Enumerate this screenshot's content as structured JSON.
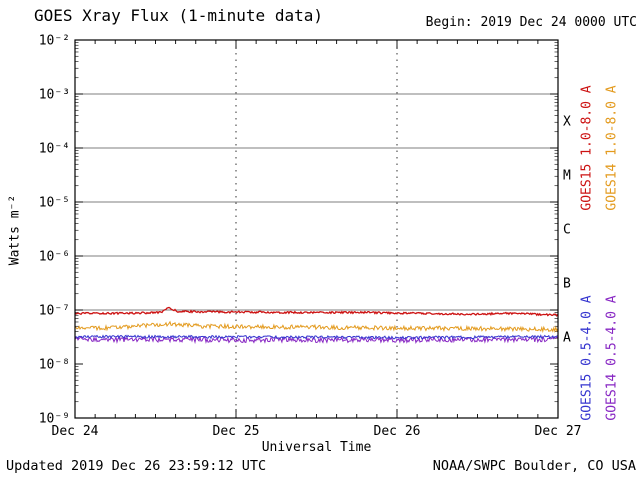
{
  "page": {
    "title": "GOES Xray Flux (1-minute data)",
    "begin_label": "Begin: 2019 Dec 24 0000 UTC",
    "background": "#ffffff",
    "frame_color": "#000000"
  },
  "footer": {
    "updated": "Updated 2019 Dec 26 23:59:12 UTC",
    "credit": "NOAA/SWPC Boulder, CO USA"
  },
  "chart_data": {
    "type": "line",
    "title": "GOES Xray Flux (1-minute data)",
    "subtitle": "Begin: 2019 Dec 24 0000 UTC",
    "xlabel": "Universal Time",
    "ylabel": "Watts m⁻²",
    "x_tick_labels": [
      "Dec 24",
      "Dec 25",
      "Dec 26",
      "Dec 27"
    ],
    "x_range_days": [
      0,
      3
    ],
    "y_scale": "log10",
    "y_log10_range": [
      -9,
      -2
    ],
    "y_tick_labels": [
      "10⁻²",
      "10⁻³",
      "10⁻⁴",
      "10⁻⁵",
      "10⁻⁶",
      "10⁻⁷",
      "10⁻⁸",
      "10⁻⁹"
    ],
    "grid": {
      "horizontal_solid_log10": [
        -3,
        -4,
        -5,
        -6,
        -7
      ],
      "vertical_dashed_days": [
        1,
        2
      ]
    },
    "legend_position": "right-rotated",
    "flare_classes": [
      {
        "label": "X",
        "log10_center": -3.5
      },
      {
        "label": "M",
        "log10_center": -4.5
      },
      {
        "label": "C",
        "log10_center": -5.5
      },
      {
        "label": "B",
        "log10_center": -6.5
      },
      {
        "label": "A",
        "log10_center": -7.5
      }
    ],
    "series": [
      {
        "name": "GOES15 1.0-8.0 A",
        "color": "#cc1111",
        "noise": 0.04,
        "points": [
          [
            0,
            8.6e-08
          ],
          [
            0.4,
            8.8e-08
          ],
          [
            0.53,
            9e-08
          ],
          [
            0.58,
            1.08e-07
          ],
          [
            0.64,
            9.4e-08
          ],
          [
            0.9,
            9.2e-08
          ],
          [
            1.4,
            9e-08
          ],
          [
            1.8,
            9e-08
          ],
          [
            2.2,
            8.6e-08
          ],
          [
            2.45,
            8.3e-08
          ],
          [
            2.7,
            8.7e-08
          ],
          [
            2.999,
            8.1e-08
          ]
        ]
      },
      {
        "name": "GOES14 1.0-8.0 A",
        "color": "#e39a1d",
        "noise": 0.09,
        "points": [
          [
            0,
            4.6e-08
          ],
          [
            0.3,
            4.8e-08
          ],
          [
            0.58,
            5.6e-08
          ],
          [
            0.8,
            5e-08
          ],
          [
            1.5,
            4.8e-08
          ],
          [
            2.2,
            4.6e-08
          ],
          [
            2.999,
            4.4e-08
          ]
        ]
      },
      {
        "name": "GOES15 0.5-4.0 A",
        "color": "#3434cf",
        "noise": 0.06,
        "points": [
          [
            0,
            3.2e-08
          ],
          [
            1.0,
            3.2e-08
          ],
          [
            2.0,
            3.1e-08
          ],
          [
            2.999,
            3.2e-08
          ]
        ]
      },
      {
        "name": "GOES14 0.5-4.0 A",
        "color": "#8726c3",
        "noise": 0.11,
        "points": [
          [
            0,
            2.9e-08
          ],
          [
            1.0,
            2.8e-08
          ],
          [
            2.0,
            2.8e-08
          ],
          [
            2.999,
            2.9e-08
          ]
        ]
      }
    ]
  }
}
